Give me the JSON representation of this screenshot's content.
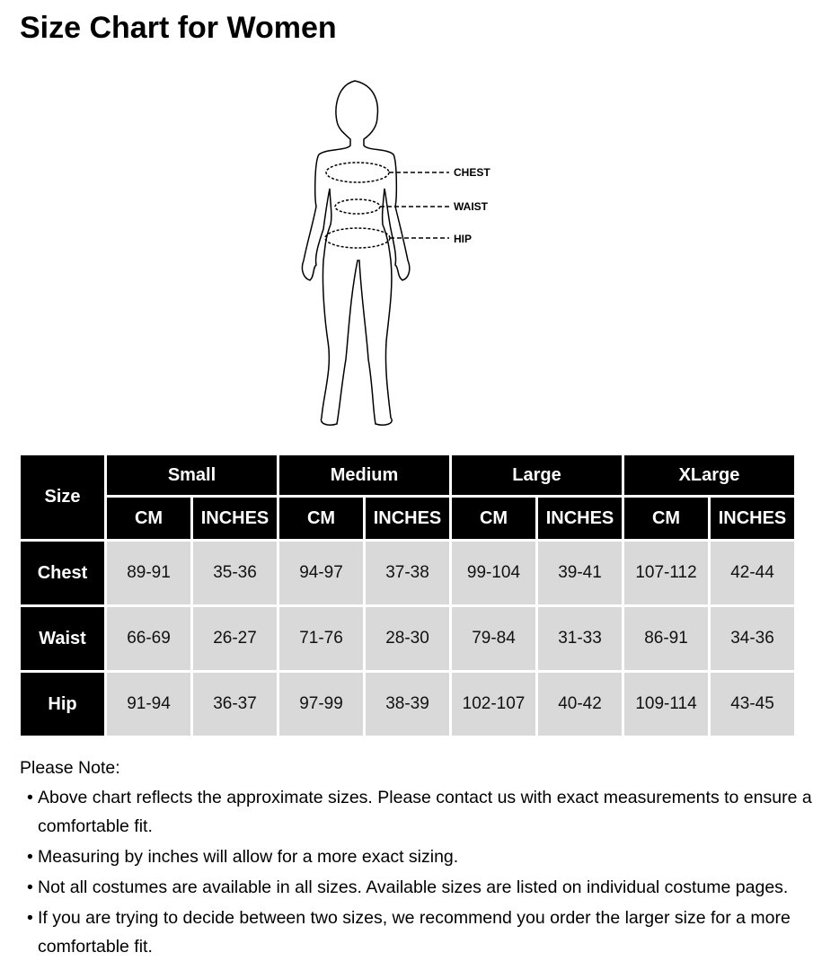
{
  "title": "Size Chart for Women",
  "figure": {
    "labels": [
      "CHEST",
      "WAIST",
      "HIP"
    ]
  },
  "table": {
    "corner": "Size",
    "groups": [
      "Small",
      "Medium",
      "Large",
      "XLarge"
    ],
    "units": [
      "CM",
      "INCHES"
    ],
    "rows": [
      {
        "label": "Chest",
        "values": [
          "89-91",
          "35-36",
          "94-97",
          "37-38",
          "99-104",
          "39-41",
          "107-112",
          "42-44"
        ]
      },
      {
        "label": "Waist",
        "values": [
          "66-69",
          "26-27",
          "71-76",
          "28-30",
          "79-84",
          "31-33",
          "86-91",
          "34-36"
        ]
      },
      {
        "label": "Hip",
        "values": [
          "91-94",
          "36-37",
          "97-99",
          "38-39",
          "102-107",
          "40-42",
          "109-114",
          "43-45"
        ]
      }
    ]
  },
  "notes": {
    "heading": "Please Note:",
    "items": [
      "Above chart reflects the approximate sizes. Please contact us with exact measurements to ensure a comfortable fit.",
      "Measuring by inches will allow for a more exact sizing.",
      "Not all costumes are available in all sizes. Available sizes are listed on individual costume pages.",
      "If you are trying to decide between two sizes, we recommend you order the larger size for a more comfortable fit."
    ]
  }
}
